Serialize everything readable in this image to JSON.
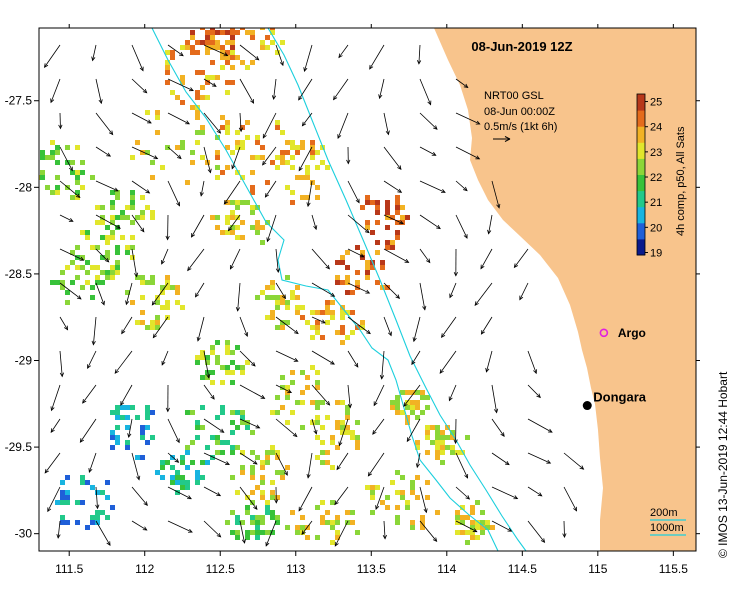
{
  "map": {
    "title": "08-Jun-2019 12Z",
    "product": {
      "line1": "NRT00 GSL",
      "line2": "08-Jun 00:00Z",
      "line3": "0.5m/s (1kt 6h)"
    },
    "axes": {
      "x_ticks": [
        "111.5",
        "112",
        "112.5",
        "113",
        "113.5",
        "114",
        "114.5",
        "115",
        "115.5"
      ],
      "y_ticks": [
        "-27.5",
        "-28",
        "-28.5",
        "-29",
        "-29.5",
        "-30"
      ],
      "lon_range": [
        111.3,
        115.65
      ],
      "lat_range": [
        -27.08,
        -30.1
      ]
    },
    "colorbar": {
      "label": "4h comp, p50, All Sats",
      "ticks": [
        "25",
        "24",
        "23",
        "22",
        "21",
        "20",
        "19"
      ],
      "range": [
        18.9,
        25.3
      ],
      "colors": [
        "#0a1a8c",
        "#1f5fd8",
        "#18b4e0",
        "#22c98a",
        "#38c23a",
        "#8bd638",
        "#e2e62c",
        "#f2b224",
        "#e46b1c",
        "#b8381a"
      ]
    },
    "places": [
      {
        "name": "Dongara",
        "lon": 114.93,
        "lat": -29.26
      },
      {
        "name": "Argo",
        "lon": 115.04,
        "lat": -28.84
      }
    ],
    "contours": {
      "label1": "200m",
      "label2": "1000m"
    },
    "land_color": "#f8c48c",
    "contour_color": "#1ccfdd"
  },
  "credit": "© IMOS 13-Jun-2019 12:44 Hobart"
}
